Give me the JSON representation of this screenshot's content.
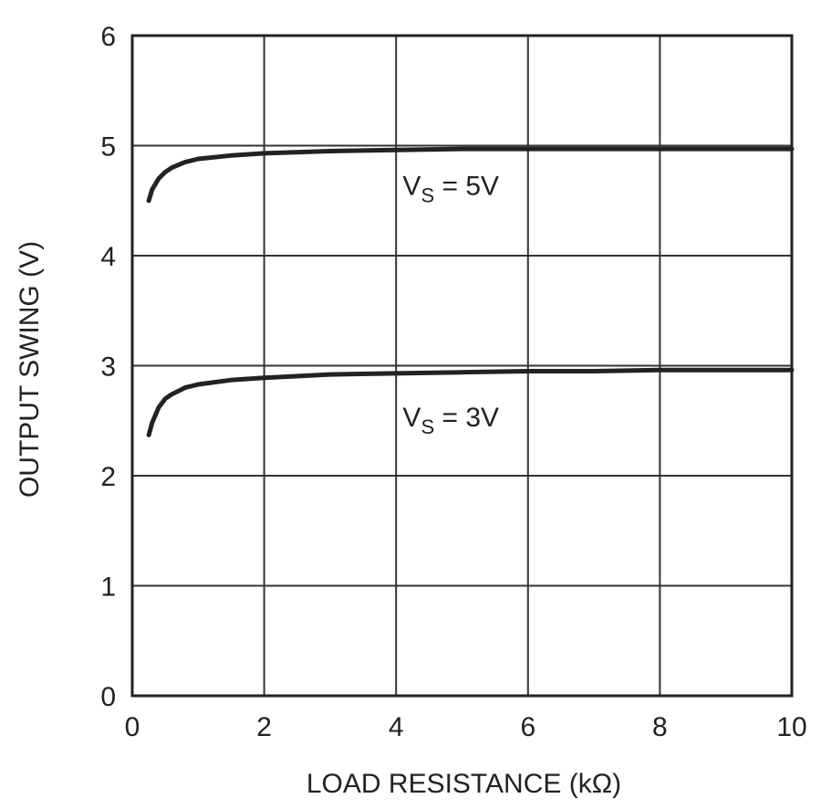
{
  "chart_data": {
    "type": "line",
    "title": "",
    "xlabel": "LOAD RESISTANCE (kΩ)",
    "ylabel": "OUTPUT SWING (V)",
    "xlim": [
      0,
      10
    ],
    "ylim": [
      0,
      6
    ],
    "xticks": [
      "0",
      "2",
      "4",
      "6",
      "8",
      "10"
    ],
    "yticks": [
      "0",
      "1",
      "2",
      "3",
      "4",
      "5",
      "6"
    ],
    "grid": true,
    "series": [
      {
        "x": [
          0.25,
          0.3,
          0.4,
          0.5,
          0.6,
          0.8,
          1.0,
          1.5,
          2,
          3,
          4,
          5,
          6,
          7,
          8,
          9,
          10
        ],
        "values": [
          4.5,
          4.6,
          4.7,
          4.76,
          4.8,
          4.85,
          4.88,
          4.91,
          4.93,
          4.95,
          4.96,
          4.97,
          4.97,
          4.97,
          4.97,
          4.97,
          4.97
        ]
      },
      {
        "x": [
          0.25,
          0.3,
          0.4,
          0.5,
          0.6,
          0.8,
          1.0,
          1.5,
          2,
          3,
          4,
          5,
          6,
          7,
          8,
          9,
          10
        ],
        "values": [
          2.37,
          2.48,
          2.62,
          2.7,
          2.74,
          2.8,
          2.83,
          2.87,
          2.89,
          2.92,
          2.93,
          2.94,
          2.95,
          2.95,
          2.96,
          2.96,
          2.96
        ]
      }
    ],
    "annotations": [
      {
        "main": "V",
        "sub": "S",
        "rest": " = 5V",
        "x": 4.1,
        "y": 4.55
      },
      {
        "main": "V",
        "sub": "S",
        "rest": " = 3V",
        "x": 4.1,
        "y": 2.45
      }
    ]
  }
}
